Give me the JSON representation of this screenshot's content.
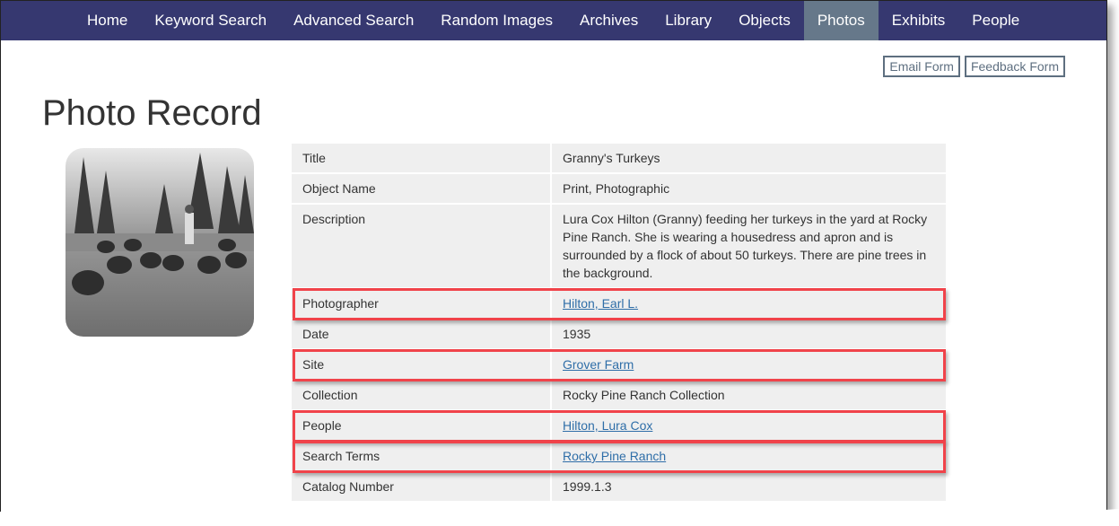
{
  "nav": {
    "items": [
      {
        "label": "Home"
      },
      {
        "label": "Keyword Search"
      },
      {
        "label": "Advanced Search"
      },
      {
        "label": "Random Images"
      },
      {
        "label": "Archives"
      },
      {
        "label": "Library"
      },
      {
        "label": "Objects"
      },
      {
        "label": "Photos",
        "active": true
      },
      {
        "label": "Exhibits"
      },
      {
        "label": "People"
      }
    ]
  },
  "forms": {
    "email": "Email Form",
    "feedback": "Feedback Form"
  },
  "page_title": "Photo Record",
  "record": [
    {
      "label": "Title",
      "value": "Granny's Turkeys"
    },
    {
      "label": "Object Name",
      "value": "Print, Photographic"
    },
    {
      "label": "Description",
      "value": "Lura Cox Hilton (Granny) feeding her turkeys in the yard at Rocky Pine Ranch. She is wearing a housedress and apron and is surrounded by a flock of about 50 turkeys. There are pine trees in the background."
    },
    {
      "label": "Photographer",
      "value": "Hilton, Earl L.",
      "link": true,
      "highlighted": true
    },
    {
      "label": "Date",
      "value": "1935"
    },
    {
      "label": "Site",
      "value": "Grover Farm",
      "link": true,
      "highlighted": true
    },
    {
      "label": "Collection",
      "value": "Rocky Pine Ranch Collection"
    },
    {
      "label": "People",
      "value": "Hilton, Lura Cox",
      "link": true,
      "highlighted": true
    },
    {
      "label": "Search Terms",
      "value": "Rocky Pine Ranch",
      "link": true,
      "highlighted": true
    },
    {
      "label": "Catalog Number",
      "value": "1999.1.3"
    }
  ],
  "colors": {
    "nav_bg": "#363870",
    "nav_active": "#66788a",
    "highlight": "#f0434a",
    "link": "#2f6ea8"
  }
}
